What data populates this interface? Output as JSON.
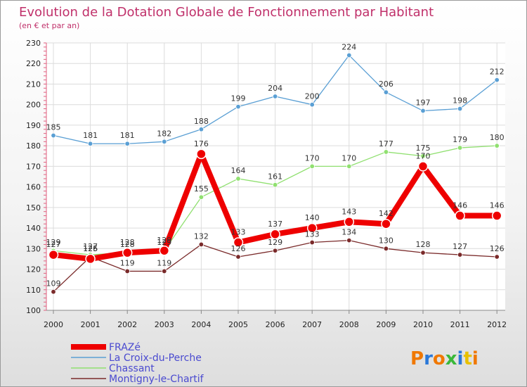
{
  "chart_data": {
    "type": "line",
    "title": "Evolution de la Dotation Globale de Fonctionnement par Habitant",
    "subtitle": "(en € et par an)",
    "xlabel": "",
    "ylabel": "",
    "ylim": [
      100,
      230
    ],
    "yticks": [
      "100",
      "110",
      "120",
      "130",
      "140",
      "150",
      "160",
      "170",
      "180",
      "190",
      "200",
      "210",
      "220",
      "230"
    ],
    "x": [
      "2000",
      "2001",
      "2002",
      "2003",
      "2004",
      "2005",
      "2006",
      "2007",
      "2008",
      "2009",
      "2010",
      "2011",
      "2012"
    ],
    "grid": true,
    "legend_position": "bottom-left",
    "series": [
      {
        "name": "La Croix-du-Perche",
        "color": "#5a9fd4",
        "values": [
          185,
          181,
          181,
          182,
          188,
          199,
          204,
          200,
          224,
          206,
          197,
          198,
          212
        ],
        "labels": [
          "185",
          "181",
          "181",
          "182",
          "188",
          "199",
          "204",
          "200",
          "224",
          "206",
          "197",
          "198",
          "212"
        ]
      },
      {
        "name": "Chassant",
        "color": "#90e070",
        "values": [
          129,
          127,
          128,
          129,
          155,
          164,
          161,
          170,
          170,
          177,
          175,
          179,
          180
        ],
        "labels": [
          "129",
          "127",
          "128",
          "129",
          "155",
          "164",
          "161",
          "170",
          "170",
          "177",
          "175",
          "179",
          "180"
        ]
      },
      {
        "name": "Montigny-le-Chartif",
        "color": "#7a2a2a",
        "values": [
          109,
          126,
          119,
          119,
          132,
          126,
          129,
          133,
          134,
          130,
          128,
          127,
          126
        ],
        "labels": [
          "109",
          "126",
          "119",
          "119",
          "132",
          "126",
          "129",
          "133",
          "134",
          "130",
          "128",
          "127",
          "126"
        ]
      },
      {
        "name": "FRAZé",
        "color": "#ee0000",
        "values": [
          127,
          125,
          128,
          129,
          176,
          133,
          137,
          140,
          143,
          142,
          170,
          146,
          146
        ],
        "labels": [
          "127",
          "125",
          "128",
          "129",
          "176",
          "133",
          "137",
          "140",
          "143",
          "142",
          "170",
          "146",
          "146"
        ]
      }
    ],
    "legend_order": [
      "FRAZé",
      "La Croix-du-Perche",
      "Chassant",
      "Montigny-le-Chartif"
    ]
  },
  "logo": {
    "text": "Proxiti",
    "colors": [
      "#f07800",
      "#2a78d8",
      "#f07800",
      "#3ab83a",
      "#2a78d8",
      "#e8c000",
      "#f07800"
    ]
  }
}
